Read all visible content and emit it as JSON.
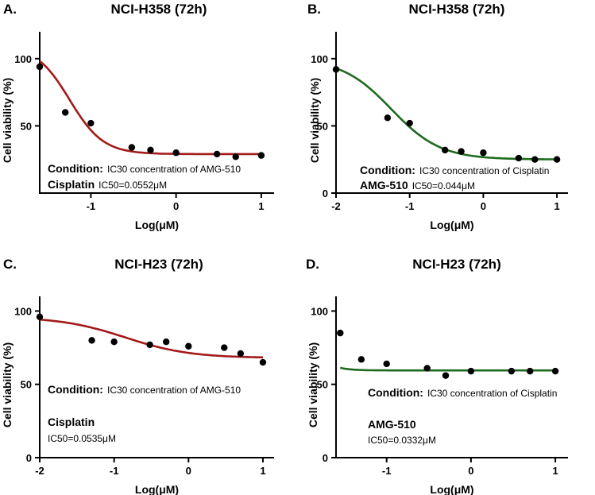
{
  "chart_data": [
    {
      "panel": "A.",
      "type": "line",
      "title": "NCI-H358 (72h)",
      "xlabel": "Log(μM)",
      "ylabel": "Cell viability (%)",
      "xlim": [
        -1.6,
        1.15
      ],
      "ylim": [
        0,
        120
      ],
      "xticks": [
        -1,
        0,
        1
      ],
      "xtick_labels": [
        "-1",
        "0",
        "1"
      ],
      "yticks": [
        50,
        100
      ],
      "ytick_labels": [
        "50",
        "100"
      ],
      "curve_color": "#a31a1a",
      "fit": {
        "bottom": 29,
        "top": 110,
        "log_ic50": -1.25,
        "hill": 2.2
      },
      "x": [
        -1.6,
        -1.3,
        -1.0,
        -0.52,
        -0.3,
        0.0,
        0.48,
        0.7,
        1.0
      ],
      "values": [
        94,
        60,
        52,
        34,
        32,
        30,
        29,
        27,
        28
      ],
      "condition_label": "Condition:",
      "condition_text": "IC30 concentration of AMG-510",
      "drug_label": "Cisplatin",
      "ic50_text": "IC50=0.0552μM"
    },
    {
      "panel": "B.",
      "type": "line",
      "title": "NCI-H358 (72h)",
      "xlabel": "Log(μM)",
      "ylabel": "Cell viability (%)",
      "xlim": [
        -2,
        1.15
      ],
      "ylim": [
        0,
        120
      ],
      "xticks": [
        -2,
        -1,
        0,
        1
      ],
      "xtick_labels": [
        "-2",
        "-1",
        "0",
        "1"
      ],
      "yticks": [
        0,
        50,
        100
      ],
      "ytick_labels": [
        "0",
        "50",
        "100"
      ],
      "curve_color": "#1e6a1e",
      "fit": {
        "bottom": 25,
        "top": 100,
        "log_ic50": -1.25,
        "hill": 1.3
      },
      "x": [
        -2.0,
        -1.3,
        -1.0,
        -0.52,
        -0.3,
        0.0,
        0.48,
        0.7,
        1.0
      ],
      "values": [
        92,
        56,
        52,
        32,
        31,
        30,
        26,
        25,
        25
      ],
      "condition_label": "Condition:",
      "condition_text": "IC30 concentration of Cisplatin",
      "drug_label": "AMG-510",
      "ic50_text": "IC50=0.044μM"
    },
    {
      "panel": "C.",
      "type": "line",
      "title": "NCI-H23 (72h)",
      "xlabel": "Log(μM)",
      "ylabel": "Cell viability (%)",
      "xlim": [
        -2,
        1.15
      ],
      "ylim": [
        0,
        110
      ],
      "xticks": [
        -2,
        -1,
        0,
        1
      ],
      "xtick_labels": [
        "-2",
        "-1",
        "0",
        "1"
      ],
      "yticks": [
        0,
        50,
        100
      ],
      "ytick_labels": [
        "0",
        "50",
        "100"
      ],
      "curve_color": "#a31a1a",
      "fit": {
        "bottom": 68,
        "top": 96,
        "log_ic50": -0.85,
        "hill": 1.0
      },
      "x": [
        -2.0,
        -1.3,
        -1.0,
        -0.52,
        -0.3,
        0.0,
        0.48,
        0.7,
        1.0
      ],
      "values": [
        96,
        80,
        79,
        77,
        79,
        76,
        75,
        71,
        65
      ],
      "condition_label": "Condition:",
      "condition_text": "IC30 concentration of AMG-510",
      "drug_label": "Cisplatin",
      "ic50_text": "IC50=0.0535μM"
    },
    {
      "panel": "D.",
      "type": "line",
      "title": "NCI-H23 (72h)",
      "xlabel": "Log(μM)",
      "ylabel": "Cell viability (%)",
      "xlim": [
        -1.6,
        1.15
      ],
      "ylim": [
        0,
        110
      ],
      "xticks": [
        -1,
        0,
        1
      ],
      "xtick_labels": [
        "-1",
        "0",
        "1"
      ],
      "yticks": [
        0,
        50,
        100
      ],
      "ytick_labels": [
        "0",
        "50",
        "100"
      ],
      "curve_color": "#1e6a1e",
      "fit": {
        "bottom": 59.5,
        "top": 140,
        "log_ic50": -2.05,
        "hill": 3.3
      },
      "x": [
        -1.55,
        -1.3,
        -1.0,
        -0.52,
        -0.3,
        0.0,
        0.48,
        0.7,
        1.0
      ],
      "values": [
        85,
        67,
        64,
        61,
        56,
        59,
        59,
        59,
        59
      ],
      "condition_label": "Condition:",
      "condition_text": "IC30 concentration of Cisplatin",
      "drug_label": "AMG-510",
      "ic50_text": "IC50=0.0332μM"
    }
  ]
}
